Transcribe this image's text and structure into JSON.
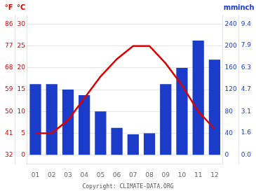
{
  "chart_data": {
    "type": "bar",
    "categories": [
      "01",
      "02",
      "03",
      "04",
      "05",
      "06",
      "07",
      "08",
      "09",
      "10",
      "11",
      "12"
    ],
    "series": [
      {
        "type": "bar",
        "color": "#1a3cc8",
        "axis": "y2",
        "values": [
          130,
          130,
          120,
          110,
          80,
          50,
          38,
          40,
          130,
          160,
          210,
          175
        ]
      },
      {
        "type": "line",
        "color": "#dd0000",
        "values": [
          5.0,
          5.0,
          8.0,
          13.0,
          18.0,
          22.0,
          25.0,
          25.0,
          21.0,
          16.0,
          10.0,
          6.0
        ]
      }
    ],
    "ylabel": "°C",
    "ylim": [
      -2,
      32
    ],
    "yticks": [
      0,
      5,
      10,
      15,
      20,
      25,
      30
    ],
    "y2label": "mm",
    "y2lim": [
      -16,
      256
    ],
    "y2ticks": [
      0,
      40,
      80,
      120,
      160,
      200,
      240
    ],
    "y3label": "°F",
    "y3lim": [
      28.4,
      89.6
    ],
    "y3ticks": [
      32,
      41,
      50,
      59,
      68,
      77,
      86
    ],
    "y4label": "inch",
    "y4lim": [
      -0.6266666666666667,
      10.026666666666667
    ],
    "y4ticks": [
      {
        "value": 0,
        "label": "0.0"
      },
      1.6,
      3.1,
      4.7,
      6.3,
      7.9,
      9.4
    ],
    "grid": true,
    "annotations": [
      {
        "text": "Copyright: CLIMATE-DATA.ORG"
      }
    ]
  }
}
